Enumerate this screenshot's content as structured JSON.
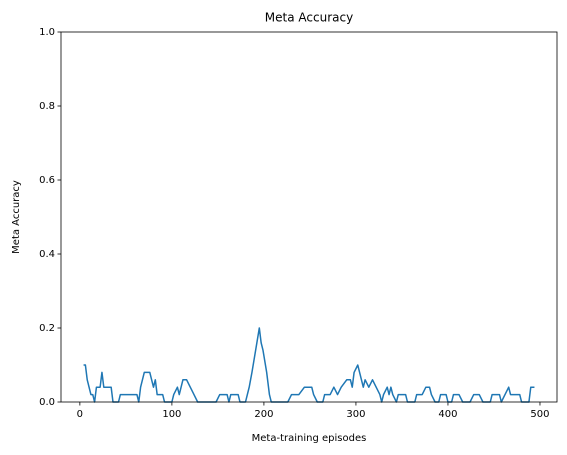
{
  "chart_data": {
    "type": "line",
    "title": "Meta Accuracy",
    "x_label": "Meta-training episodes",
    "y_label": "Meta Accuracy",
    "x": [
      4,
      6,
      8,
      10,
      12,
      14,
      16,
      18,
      22,
      24,
      26,
      34,
      36,
      42,
      44,
      62,
      64,
      66,
      70,
      76,
      78,
      80,
      82,
      84,
      90,
      92,
      100,
      102,
      106,
      108,
      110,
      112,
      116,
      120,
      124,
      128,
      148,
      152,
      160,
      162,
      164,
      172,
      174,
      180,
      182,
      184,
      187,
      191,
      195,
      197,
      199,
      203,
      206,
      208,
      226,
      230,
      238,
      244,
      252,
      254,
      258,
      264,
      266,
      272,
      276,
      280,
      284,
      290,
      294,
      296,
      298,
      302,
      304,
      306,
      308,
      310,
      314,
      318,
      322,
      326,
      328,
      330,
      334,
      336,
      338,
      340,
      344,
      346,
      354,
      356,
      364,
      366,
      372,
      376,
      380,
      382,
      386,
      390,
      392,
      398,
      400,
      404,
      406,
      412,
      416,
      424,
      428,
      434,
      438,
      446,
      448,
      456,
      458,
      462,
      466,
      468,
      478,
      480,
      488,
      490,
      494
    ],
    "series": [
      {
        "name": "Meta Accuracy",
        "color": "#1f77b4",
        "values": [
          0.1,
          0.1,
          0.06,
          0.04,
          0.02,
          0.02,
          0,
          0.04,
          0.04,
          0.08,
          0.04,
          0.04,
          0,
          0,
          0.02,
          0.02,
          0,
          0.04,
          0.08,
          0.08,
          0.06,
          0.04,
          0.06,
          0.02,
          0.02,
          0,
          0,
          0.02,
          0.04,
          0.02,
          0.04,
          0.06,
          0.06,
          0.04,
          0.02,
          0,
          0,
          0.02,
          0.02,
          0,
          0.02,
          0.02,
          0,
          0,
          0.02,
          0.04,
          0.08,
          0.14,
          0.2,
          0.16,
          0.14,
          0.08,
          0.02,
          0,
          0,
          0.02,
          0.02,
          0.04,
          0.04,
          0.02,
          0,
          0,
          0.02,
          0.02,
          0.04,
          0.02,
          0.04,
          0.06,
          0.06,
          0.04,
          0.08,
          0.1,
          0.08,
          0.06,
          0.04,
          0.06,
          0.04,
          0.06,
          0.04,
          0.02,
          0,
          0.02,
          0.04,
          0.02,
          0.04,
          0.02,
          0,
          0.02,
          0.02,
          0,
          0,
          0.02,
          0.02,
          0.04,
          0.04,
          0.02,
          0,
          0,
          0.02,
          0.02,
          0,
          0,
          0.02,
          0.02,
          0,
          0,
          0.02,
          0.02,
          0,
          0,
          0.02,
          0.02,
          0,
          0.02,
          0.04,
          0.02,
          0.02,
          0,
          0,
          0.04,
          0.04
        ]
      }
    ],
    "xlim": [
      -20.5,
      518.5
    ],
    "xticks": [
      0,
      100,
      200,
      300,
      400,
      500
    ],
    "ylim": [
      0,
      1
    ],
    "yticks": [
      {
        "value": 0,
        "label": "0.0"
      },
      0.2,
      0.4,
      0.6,
      0.8,
      {
        "value": 1,
        "label": "1.0"
      }
    ]
  }
}
